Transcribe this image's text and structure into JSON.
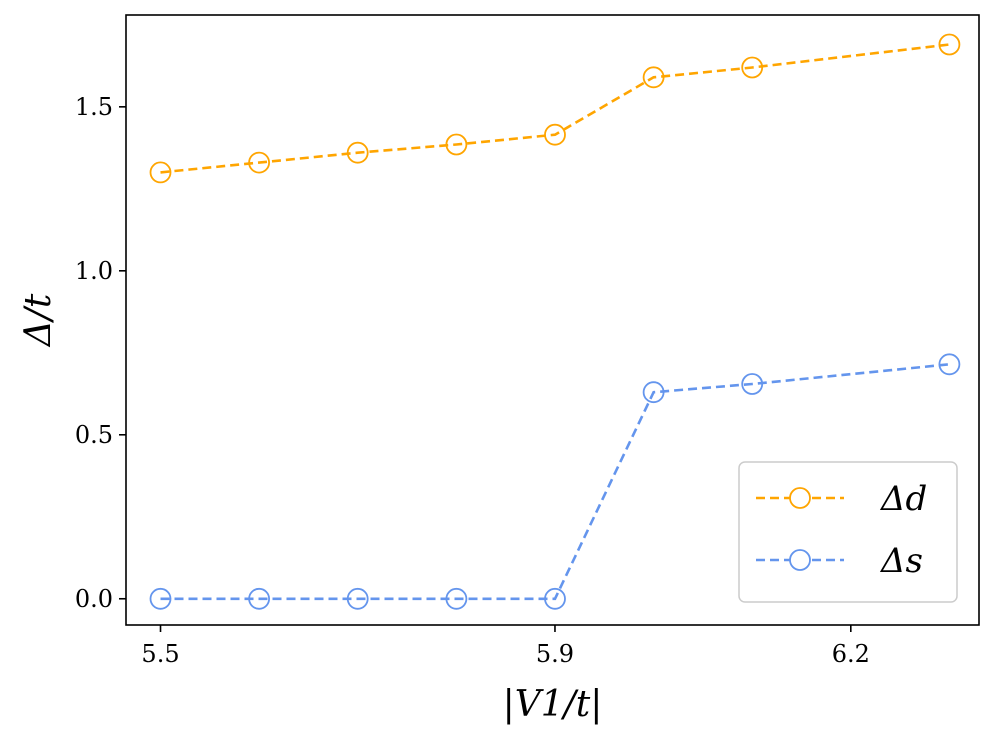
{
  "chart_data": {
    "type": "line",
    "x": [
      5.5,
      5.6,
      5.7,
      5.8,
      5.9,
      6.0,
      6.1,
      6.3
    ],
    "xlim": [
      5.465,
      6.33
    ],
    "ylim": [
      -0.08,
      1.78
    ],
    "xticks": [
      5.5,
      5.9,
      6.2
    ],
    "xtick_labels": [
      "5.5",
      "5.9",
      "6.2"
    ],
    "yticks": [
      0.0,
      0.5,
      1.0,
      1.5
    ],
    "ytick_labels": [
      "0.0",
      "0.5",
      "1.0",
      "1.5"
    ],
    "xlabel": "|V1/t|",
    "ylabel": "Δ/t",
    "grid": false,
    "legend_position": "lower-right",
    "series": [
      {
        "name": "Δd",
        "color": "#FFA500",
        "line_style": "dashed",
        "marker": "open-circle",
        "values": [
          1.3,
          1.33,
          1.36,
          1.385,
          1.415,
          1.59,
          1.62,
          1.69
        ]
      },
      {
        "name": "Δs",
        "color": "#6495ED",
        "line_style": "dashed",
        "marker": "open-circle",
        "values": [
          0.0,
          0.0,
          0.0,
          0.0,
          0.0,
          0.63,
          0.655,
          0.715
        ]
      }
    ]
  }
}
